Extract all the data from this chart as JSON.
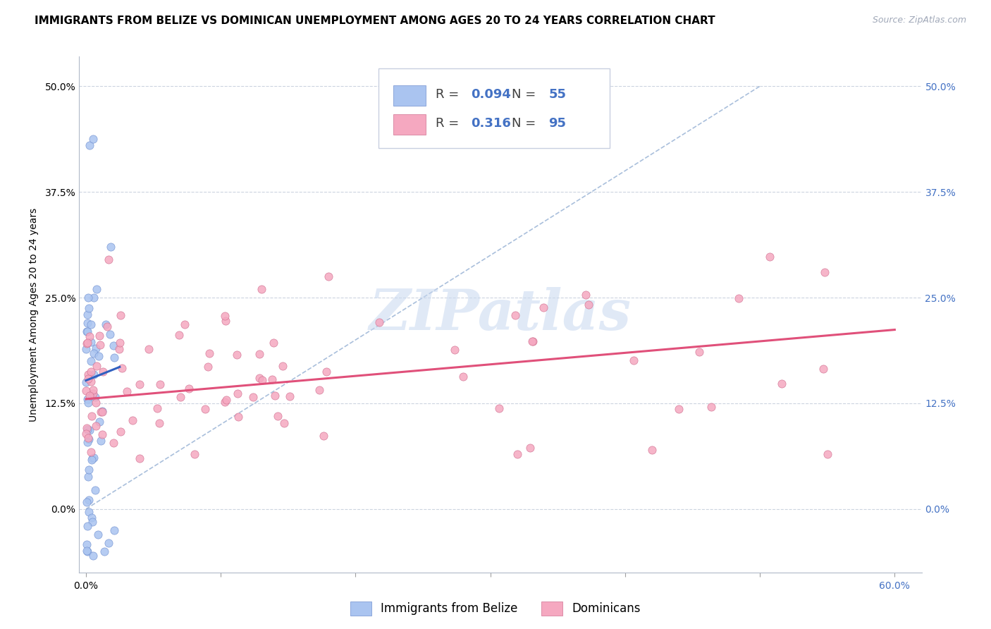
{
  "title": "IMMIGRANTS FROM BELIZE VS DOMINICAN UNEMPLOYMENT AMONG AGES 20 TO 24 YEARS CORRELATION CHART",
  "source": "Source: ZipAtlas.com",
  "ylabel": "Unemployment Among Ages 20 to 24 years",
  "ytick_labels": [
    "0.0%",
    "12.5%",
    "25.0%",
    "37.5%",
    "50.0%"
  ],
  "ytick_values": [
    0.0,
    0.125,
    0.25,
    0.375,
    0.5
  ],
  "xlim": [
    -0.005,
    0.62
  ],
  "ylim": [
    -0.075,
    0.535
  ],
  "belize_color": "#aac4f0",
  "belize_edge": "#7090d0",
  "dominican_color": "#f5a8c0",
  "dominican_edge": "#d07090",
  "trend_belize_color": "#3060c0",
  "trend_dominican_color": "#e0507a",
  "diagonal_color": "#a0b8d8",
  "belize_R": 0.094,
  "belize_N": 55,
  "dominican_R": 0.316,
  "dominican_N": 95,
  "watermark": "ZIPatlas",
  "watermark_color": "#c8d8f0",
  "title_fontsize": 11,
  "axis_label_fontsize": 10,
  "tick_fontsize": 10,
  "right_tick_color": "#4472c4",
  "legend_color": "#4472c4"
}
